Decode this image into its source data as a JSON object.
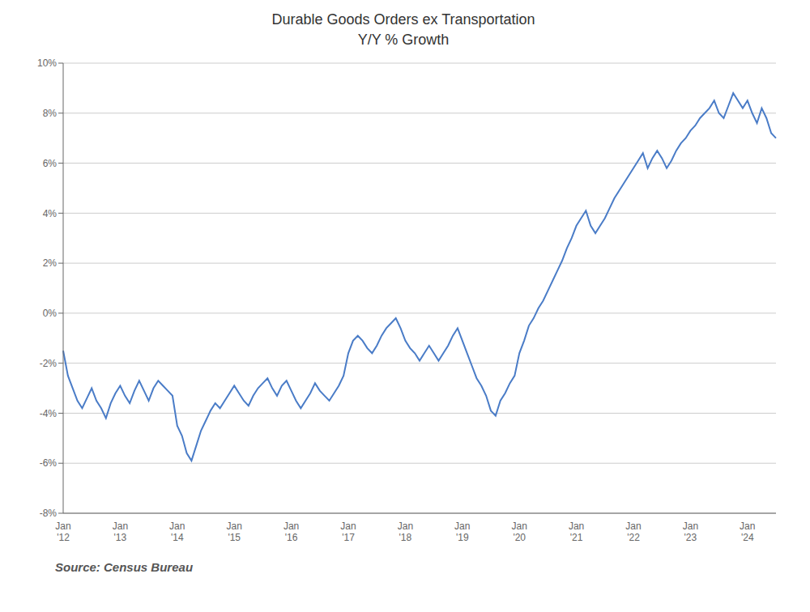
{
  "chart_data": {
    "type": "line",
    "title": "Durable Goods Orders ex Transportation",
    "subtitle": "Y/Y % Growth",
    "source": "Source: Census Bureau",
    "color": "#4a7cc7",
    "grid": true,
    "ylim": [
      -8,
      10
    ],
    "yticks": [
      {
        "value": -8,
        "label": "-8%"
      },
      {
        "value": -6,
        "label": "-6%"
      },
      {
        "value": -4,
        "label": "-4%"
      },
      {
        "value": -2,
        "label": "-2%"
      },
      {
        "value": 0,
        "label": "0%"
      },
      {
        "value": 2,
        "label": "2%"
      },
      {
        "value": 4,
        "label": "4%"
      },
      {
        "value": 6,
        "label": "6%"
      },
      {
        "value": 8,
        "label": "8%"
      },
      {
        "value": 10,
        "label": "10%"
      }
    ],
    "categories": [
      "Jan\n'12",
      null,
      null,
      null,
      null,
      null,
      null,
      null,
      null,
      null,
      null,
      null,
      "Jan\n'13",
      null,
      null,
      null,
      null,
      null,
      null,
      null,
      null,
      null,
      null,
      null,
      "Jan\n'14",
      null,
      null,
      null,
      null,
      null,
      null,
      null,
      null,
      null,
      null,
      null,
      "Jan\n'15",
      null,
      null,
      null,
      null,
      null,
      null,
      null,
      null,
      null,
      null,
      null,
      "Jan\n'16",
      null,
      null,
      null,
      null,
      null,
      null,
      null,
      null,
      null,
      null,
      null,
      "Jan\n'17",
      null,
      null,
      null,
      null,
      null,
      null,
      null,
      null,
      null,
      null,
      null,
      "Jan\n'18",
      null,
      null,
      null,
      null,
      null,
      null,
      null,
      null,
      null,
      null,
      null,
      "Jan\n'19",
      null,
      null,
      null,
      null,
      null,
      null,
      null,
      null,
      null,
      null,
      null,
      "Jan\n'20",
      null,
      null,
      null,
      null,
      null,
      null,
      null,
      null,
      null,
      null,
      null,
      "Jan\n'21",
      null,
      null,
      null,
      null,
      null,
      null,
      null,
      null,
      null,
      null,
      null,
      "Jan\n'22",
      null,
      null,
      null,
      null,
      null,
      null,
      null,
      null,
      null,
      null,
      null,
      "Jan\n'23",
      null,
      null,
      null,
      null,
      null,
      null,
      null,
      null,
      null,
      null,
      null,
      "Jan\n'24",
      null,
      null,
      null,
      null,
      null,
      null
    ],
    "values": [
      -1.5,
      -2.5,
      -3.0,
      -3.5,
      -3.8,
      -3.4,
      -3.0,
      -3.5,
      -3.8,
      -4.2,
      -3.6,
      -3.2,
      -2.9,
      -3.3,
      -3.6,
      -3.1,
      -2.7,
      -3.1,
      -3.5,
      -3.0,
      -2.7,
      -2.9,
      -3.1,
      -3.3,
      -4.5,
      -4.9,
      -5.6,
      -5.9,
      -5.3,
      -4.7,
      -4.3,
      -3.9,
      -3.6,
      -3.8,
      -3.5,
      -3.2,
      -2.9,
      -3.2,
      -3.5,
      -3.7,
      -3.3,
      -3.0,
      -2.8,
      -2.6,
      -3.0,
      -3.3,
      -2.9,
      -2.7,
      -3.1,
      -3.5,
      -3.8,
      -3.5,
      -3.2,
      -2.8,
      -3.1,
      -3.3,
      -3.5,
      -3.2,
      -2.9,
      -2.5,
      -1.6,
      -1.1,
      -0.9,
      -1.1,
      -1.4,
      -1.6,
      -1.3,
      -0.9,
      -0.6,
      -0.4,
      -0.2,
      -0.6,
      -1.1,
      -1.4,
      -1.6,
      -1.9,
      -1.6,
      -1.3,
      -1.6,
      -1.9,
      -1.6,
      -1.3,
      -0.9,
      -0.6,
      -1.1,
      -1.6,
      -2.1,
      -2.6,
      -2.9,
      -3.3,
      -3.9,
      -4.1,
      -3.5,
      -3.2,
      -2.8,
      -2.5,
      -1.6,
      -1.1,
      -0.5,
      -0.2,
      0.2,
      0.5,
      0.9,
      1.3,
      1.7,
      2.1,
      2.6,
      3.0,
      3.5,
      3.8,
      4.1,
      3.5,
      3.2,
      3.5,
      3.8,
      4.2,
      4.6,
      4.9,
      5.2,
      5.5,
      5.8,
      6.1,
      6.4,
      5.8,
      6.2,
      6.5,
      6.2,
      5.8,
      6.1,
      6.5,
      6.8,
      7.0,
      7.3,
      7.5,
      7.8,
      8.0,
      8.2,
      8.5,
      8.0,
      7.8,
      8.3,
      8.8,
      8.5,
      8.2,
      8.5,
      8.0,
      7.6,
      8.2,
      7.8,
      7.2,
      7.0
    ]
  }
}
